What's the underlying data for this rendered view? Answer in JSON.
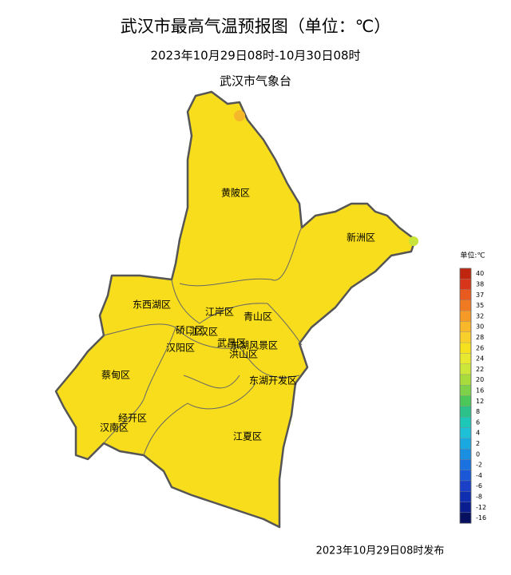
{
  "header": {
    "title": "武汉市最高气温预报图（单位：℃）",
    "period": "2023年10月29日08时-10月30日08时",
    "issuer": "武汉市气象台"
  },
  "districts": [
    "黄陂区",
    "新洲区",
    "东西湖区",
    "江岸区",
    "青山区",
    "硚口区",
    "江汉区",
    "汉阳区",
    "武昌区",
    "洪山区",
    "东湖风景区",
    "蔡甸区",
    "东湖开发区",
    "经开区",
    "汉南区",
    "江夏区"
  ],
  "legend": {
    "title": "单位:℃",
    "items": [
      {
        "label": "40",
        "color": "#c0260f"
      },
      {
        "label": "38",
        "color": "#d8361a"
      },
      {
        "label": "37",
        "color": "#e85a1e"
      },
      {
        "label": "35",
        "color": "#f07a22"
      },
      {
        "label": "32",
        "color": "#f59a26"
      },
      {
        "label": "30",
        "color": "#f8b82a"
      },
      {
        "label": "28",
        "color": "#f9cf2b"
      },
      {
        "label": "26",
        "color": "#f6e11e"
      },
      {
        "label": "24",
        "color": "#e8e830"
      },
      {
        "label": "22",
        "color": "#cce63a"
      },
      {
        "label": "20",
        "color": "#a8dc3c"
      },
      {
        "label": "16",
        "color": "#7ed24a"
      },
      {
        "label": "12",
        "color": "#4cc85a"
      },
      {
        "label": "8",
        "color": "#2cc08a"
      },
      {
        "label": "6",
        "color": "#1ec8b8"
      },
      {
        "label": "4",
        "color": "#1ec0d8"
      },
      {
        "label": "2",
        "color": "#1aa8e0"
      },
      {
        "label": "0",
        "color": "#1a8ee0"
      },
      {
        "label": "-2",
        "color": "#1a72e0"
      },
      {
        "label": "-4",
        "color": "#1a58d8"
      },
      {
        "label": "-6",
        "color": "#1a40c8"
      },
      {
        "label": "-8",
        "color": "#102eb0"
      },
      {
        "label": "-12",
        "color": "#0a1e90"
      },
      {
        "label": "-16",
        "color": "#06105e"
      }
    ]
  },
  "footer": "2023年10月29日08时发布"
}
